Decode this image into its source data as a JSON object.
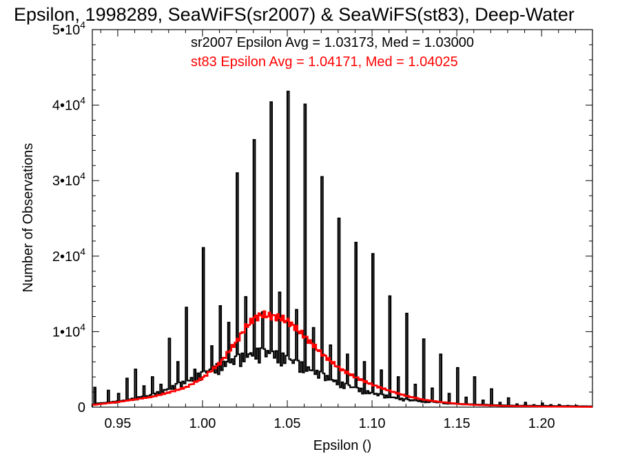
{
  "chart_data": {
    "type": "histogram",
    "title": "Epsilon, 1998289, SeaWiFS(sr2007) & SeaWiFS(st83), Deep-Water",
    "xlabel": "Epsilon ()",
    "ylabel": "Number of Observations",
    "xlim": [
      0.935,
      1.23
    ],
    "ylim": [
      0,
      50000
    ],
    "x_ticks": [
      {
        "value": 0.95,
        "label": "0.95"
      },
      {
        "value": 1.0,
        "label": "1.00"
      },
      {
        "value": 1.05,
        "label": "1.05"
      },
      {
        "value": 1.1,
        "label": "1.10"
      },
      {
        "value": 1.15,
        "label": "1.15"
      },
      {
        "value": 1.2,
        "label": "1.20"
      }
    ],
    "y_ticks": [
      {
        "value": 0,
        "label": "0"
      },
      {
        "value": 10000,
        "mant": "1",
        "exp": "4"
      },
      {
        "value": 20000,
        "mant": "2",
        "exp": "4"
      },
      {
        "value": 30000,
        "mant": "3",
        "exp": "4"
      },
      {
        "value": 40000,
        "mant": "4",
        "exp": "4"
      },
      {
        "value": 50000,
        "mant": "5",
        "exp": "4"
      }
    ],
    "annotations": [
      {
        "text": "sr2007 Epsilon Avg = 1.03173, Med = 1.03000",
        "color": "#000000"
      },
      {
        "text": "st83 Epsilon Avg = 1.04171, Med = 1.04025",
        "color": "#ff0000"
      }
    ],
    "series": [
      {
        "name": "sr2007",
        "color": "#000000",
        "spikes": [
          [
            0.936,
            2600
          ],
          [
            0.944,
            2200
          ],
          [
            0.95,
            1800
          ],
          [
            0.955,
            3800
          ],
          [
            0.96,
            5000
          ],
          [
            0.965,
            2800
          ],
          [
            0.97,
            4000
          ],
          [
            0.975,
            3000
          ],
          [
            0.98,
            9100
          ],
          [
            0.985,
            6000
          ],
          [
            0.99,
            13200
          ],
          [
            0.995,
            5000
          ],
          [
            1.0,
            21100
          ],
          [
            1.005,
            8100
          ],
          [
            1.01,
            13400
          ],
          [
            1.015,
            11200
          ],
          [
            1.02,
            31000
          ],
          [
            1.025,
            14600
          ],
          [
            1.03,
            35400
          ],
          [
            1.035,
            12600
          ],
          [
            1.04,
            40400
          ],
          [
            1.045,
            15200
          ],
          [
            1.05,
            41800
          ],
          [
            1.055,
            12900
          ],
          [
            1.06,
            40100
          ],
          [
            1.065,
            10500
          ],
          [
            1.07,
            30500
          ],
          [
            1.075,
            8200
          ],
          [
            1.08,
            25000
          ],
          [
            1.085,
            7000
          ],
          [
            1.09,
            21800
          ],
          [
            1.095,
            6000
          ],
          [
            1.1,
            20300
          ],
          [
            1.105,
            4900
          ],
          [
            1.11,
            14700
          ],
          [
            1.115,
            4000
          ],
          [
            1.12,
            12400
          ],
          [
            1.125,
            3000
          ],
          [
            1.13,
            9000
          ],
          [
            1.135,
            2500
          ],
          [
            1.14,
            7000
          ],
          [
            1.145,
            1800
          ],
          [
            1.15,
            5200
          ],
          [
            1.155,
            1300
          ],
          [
            1.16,
            4000
          ],
          [
            1.165,
            900
          ],
          [
            1.17,
            2400
          ],
          [
            1.175,
            600
          ],
          [
            1.18,
            1200
          ],
          [
            1.185,
            400
          ],
          [
            1.19,
            600
          ],
          [
            1.195,
            300
          ],
          [
            1.2,
            500
          ],
          [
            1.205,
            300
          ],
          [
            1.21,
            300
          ],
          [
            1.215,
            200
          ],
          [
            1.22,
            200
          ]
        ],
        "baseline": [
          [
            0.935,
            400
          ],
          [
            0.95,
            700
          ],
          [
            0.97,
            1500
          ],
          [
            0.99,
            3200
          ],
          [
            1.0,
            4200
          ],
          [
            1.01,
            5200
          ],
          [
            1.02,
            6000
          ],
          [
            1.03,
            6800
          ],
          [
            1.04,
            6800
          ],
          [
            1.05,
            6000
          ],
          [
            1.06,
            5000
          ],
          [
            1.07,
            4000
          ],
          [
            1.08,
            3000
          ],
          [
            1.1,
            1700
          ],
          [
            1.12,
            900
          ],
          [
            1.15,
            400
          ],
          [
            1.18,
            200
          ],
          [
            1.23,
            100
          ]
        ]
      },
      {
        "name": "st83",
        "color": "#ff0000",
        "curve": [
          [
            0.935,
            300
          ],
          [
            0.95,
            700
          ],
          [
            0.97,
            1400
          ],
          [
            0.98,
            2000
          ],
          [
            0.99,
            2700
          ],
          [
            1.0,
            4000
          ],
          [
            1.01,
            6000
          ],
          [
            1.02,
            9000
          ],
          [
            1.025,
            10800
          ],
          [
            1.03,
            12000
          ],
          [
            1.035,
            12500
          ],
          [
            1.04,
            12300
          ],
          [
            1.045,
            12100
          ],
          [
            1.05,
            11600
          ],
          [
            1.055,
            10600
          ],
          [
            1.06,
            9500
          ],
          [
            1.07,
            7200
          ],
          [
            1.08,
            5300
          ],
          [
            1.09,
            4000
          ],
          [
            1.1,
            3000
          ],
          [
            1.11,
            2200
          ],
          [
            1.12,
            1500
          ],
          [
            1.13,
            1000
          ],
          [
            1.14,
            700
          ],
          [
            1.15,
            450
          ],
          [
            1.16,
            300
          ],
          [
            1.18,
            150
          ],
          [
            1.2,
            80
          ],
          [
            1.23,
            30
          ]
        ]
      }
    ]
  }
}
